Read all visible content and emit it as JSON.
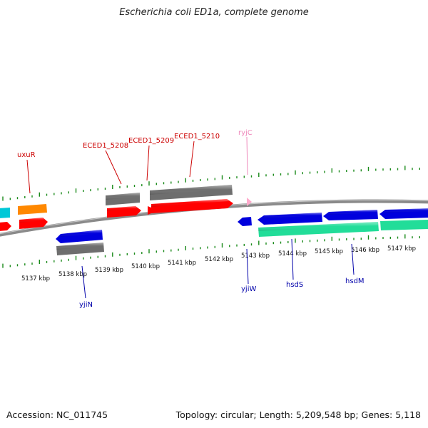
{
  "title": "Escherichia coli ED1a, complete genome",
  "footer": {
    "accession": "Accession: NC_011745",
    "summary": "Topology: circular; Length: 5,209,548 bp; Genes: 5,118"
  },
  "colors": {
    "backbone": "#8a8a8a",
    "ticks": "#1a8a1a",
    "strand_plus_label": "#cc0000",
    "strand_minus_label": "#0000aa",
    "rna_label": "#ee88bb",
    "gene_red": "#ff0000",
    "gene_blue": "#0000dd",
    "gene_grey": "#707070",
    "gene_orange": "#ff8800",
    "gene_cyan": "#00c8d8",
    "gene_teal": "#22dd99",
    "rna_pink": "#ffaacc"
  },
  "scale_labels": [
    "5137 kbp",
    "5138 kbp",
    "5139 kbp",
    "5140 kbp",
    "5141 kbp",
    "5142 kbp",
    "5143 kbp",
    "5144 kbp",
    "5145 kbp",
    "5146 kbp",
    "5147 kbp"
  ],
  "gene_labels": {
    "uxuR": "uxuR",
    "eced1_5208": "ECED1_5208",
    "eced1_5209": "ECED1_5209",
    "eced1_5210": "ECED1_5210",
    "ryjC": "ryjC",
    "yjiN": "yjiN",
    "yjiW": "yjiW",
    "hsdS": "hsdS",
    "hsdM": "hsdM"
  }
}
